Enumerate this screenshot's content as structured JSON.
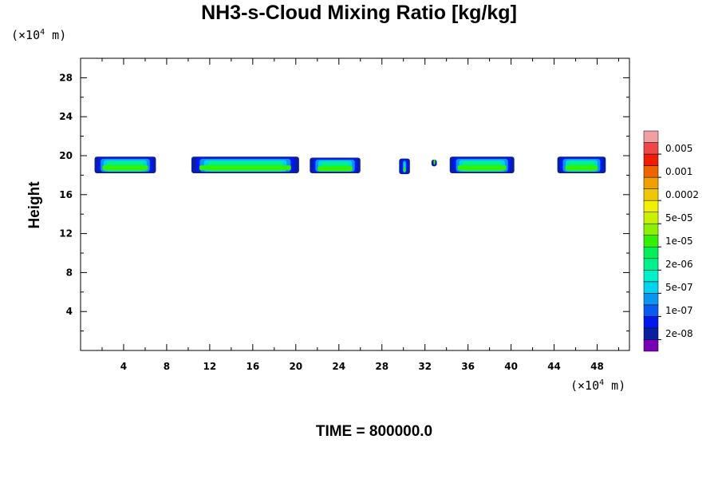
{
  "title": "NH3-s-Cloud Mixing Ratio [kg/kg]",
  "time_label": "TIME = 800000.0",
  "chart_data": {
    "type": "heatmap",
    "title": "NH3-s-Cloud Mixing Ratio [kg/kg]",
    "xlabel": "",
    "ylabel": "Height",
    "x_unit": {
      "prefix": "(×10",
      "exp": "4",
      "suffix": " m)"
    },
    "y_unit": {
      "prefix": "(×10",
      "exp": "4",
      "suffix": " m)"
    },
    "xlim": [
      0,
      51
    ],
    "ylim": [
      0,
      30
    ],
    "x_ticks": [
      4,
      8,
      12,
      16,
      20,
      24,
      28,
      32,
      36,
      40,
      44,
      48
    ],
    "y_ticks": [
      4,
      8,
      12,
      16,
      20,
      24,
      28
    ],
    "colorbar": {
      "colors": [
        "#7a00b4",
        "#0a1fa0",
        "#0018f0",
        "#0a5af0",
        "#0a96f0",
        "#00d2f0",
        "#00f0c8",
        "#00f08c",
        "#00f05a",
        "#32f000",
        "#8cf000",
        "#c8f000",
        "#f0f000",
        "#f0c800",
        "#f0a000",
        "#f06400",
        "#f01e00",
        "#f04646",
        "#f0a0a0"
      ],
      "labels": [
        "2e-08",
        "1e-07",
        "5e-07",
        "2e-06",
        "1e-05",
        "5e-05",
        "0.0002",
        "0.001",
        "0.005"
      ]
    },
    "clouds": [
      {
        "x": [
          1.3,
          7.0
        ],
        "y": [
          18.2,
          19.9
        ],
        "core": 18.6
      },
      {
        "x": [
          10.3,
          20.3
        ],
        "y": [
          18.2,
          19.9
        ],
        "core": 18.6
      },
      {
        "x": [
          21.3,
          26.0
        ],
        "y": [
          18.2,
          19.8
        ],
        "core": 18.5
      },
      {
        "x": [
          29.6,
          30.6
        ],
        "y": [
          18.1,
          19.7
        ],
        "core": 18.4
      },
      {
        "x": [
          32.6,
          33.1
        ],
        "y": [
          18.9,
          19.6
        ],
        "core": 19.2
      },
      {
        "x": [
          34.3,
          40.3
        ],
        "y": [
          18.2,
          19.9
        ],
        "core": 18.6
      },
      {
        "x": [
          44.3,
          48.8
        ],
        "y": [
          18.2,
          19.9
        ],
        "core": 18.6
      }
    ]
  }
}
